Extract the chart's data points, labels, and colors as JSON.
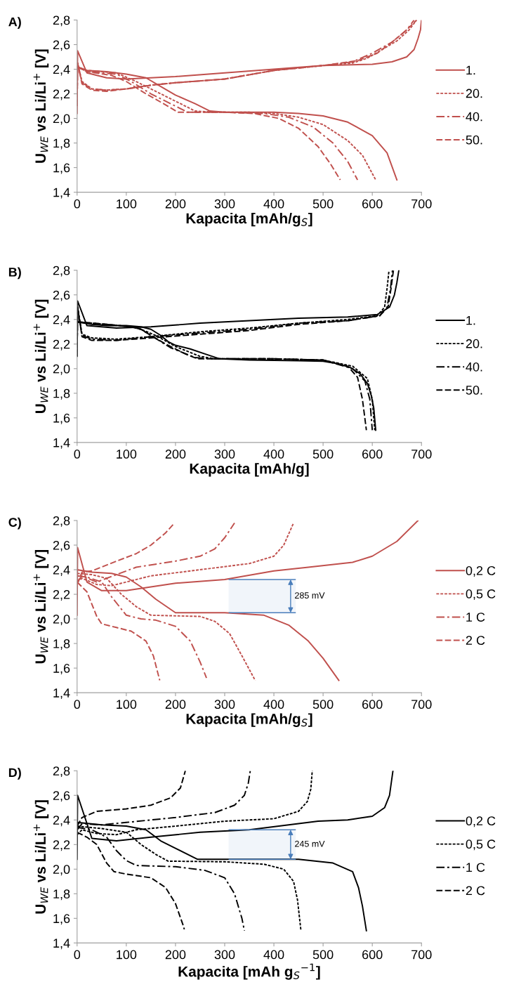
{
  "chart_data": [
    {
      "type": "line",
      "title": "A)",
      "xlabel": "Kapacita [mAh/g$_{S}$]",
      "ylabel": "U$_{WE}$ vs Li/Li$^{+}$ [V]",
      "xlim": [
        0,
        700
      ],
      "xticks": [
        0,
        100,
        200,
        300,
        400,
        500,
        600,
        700
      ],
      "ylim": [
        1.4,
        2.8
      ],
      "yticks": [
        {
          "value": 1.4,
          "label": "1,4"
        },
        {
          "value": 1.6,
          "label": "1,6"
        },
        {
          "value": 1.8,
          "label": "1,8"
        },
        {
          "value": 2.0,
          "label": "2,0"
        },
        {
          "value": 2.2,
          "label": "2,2"
        },
        {
          "value": 2.4,
          "label": "2,4"
        },
        {
          "value": 2.6,
          "label": "2,6"
        },
        {
          "value": 2.8,
          "label": "2,8"
        }
      ],
      "legend": "right",
      "grid": false,
      "marker": "none",
      "series": [
        {
          "name": "1.",
          "color": "#c0504d",
          "line_style": "solid",
          "x": [
            0,
            20,
            60,
            100,
            140,
            170,
            200,
            240,
            270,
            300,
            400,
            450,
            500,
            550,
            600,
            630,
            650
          ],
          "values": [
            2.42,
            2.39,
            2.38,
            2.36,
            2.33,
            2.26,
            2.19,
            2.12,
            2.06,
            2.05,
            2.05,
            2.04,
            2.02,
            1.97,
            1.86,
            1.72,
            1.5
          ]
        },
        {
          "color": "#c0504d",
          "line_style": "solid",
          "x": [
            0,
            1,
            20,
            60,
            100,
            150,
            200,
            300,
            400,
            500,
            600,
            640,
            670,
            685,
            693,
            698,
            700
          ],
          "values": [
            2.04,
            2.55,
            2.37,
            2.33,
            2.32,
            2.33,
            2.34,
            2.37,
            2.4,
            2.43,
            2.44,
            2.46,
            2.5,
            2.56,
            2.65,
            2.72,
            2.8
          ]
        },
        {
          "name": "20.",
          "color": "#c0504d",
          "line_style": "dashed",
          "x": [
            0,
            20,
            80,
            120,
            160,
            200,
            240,
            280,
            350,
            400,
            450,
            500,
            550,
            580,
            607
          ],
          "values": [
            2.42,
            2.39,
            2.37,
            2.3,
            2.22,
            2.14,
            2.06,
            2.05,
            2.05,
            2.04,
            2.01,
            1.95,
            1.82,
            1.7,
            1.5
          ]
        },
        {
          "color": "#c0504d",
          "line_style": "dashed",
          "x": [
            0,
            1,
            10,
            30,
            60,
            100,
            150,
            200,
            300,
            400,
            500,
            560,
            590,
            620,
            650,
            675,
            690
          ],
          "values": [
            2.1,
            2.45,
            2.3,
            2.24,
            2.23,
            2.24,
            2.27,
            2.29,
            2.32,
            2.39,
            2.43,
            2.45,
            2.49,
            2.56,
            2.63,
            2.72,
            2.8
          ]
        },
        {
          "name": "40.",
          "color": "#c0504d",
          "line_style": "dashdot",
          "x": [
            0,
            20,
            80,
            110,
            150,
            190,
            225,
            300,
            380,
            430,
            480,
            520,
            550,
            570
          ],
          "values": [
            2.42,
            2.38,
            2.36,
            2.3,
            2.2,
            2.12,
            2.05,
            2.05,
            2.04,
            2.01,
            1.93,
            1.8,
            1.65,
            1.5
          ]
        },
        {
          "color": "#c0504d",
          "line_style": "dashdot",
          "x": [
            0,
            1,
            10,
            30,
            60,
            100,
            150,
            200,
            300,
            400,
            500,
            560,
            600,
            640,
            670,
            685
          ],
          "values": [
            2.1,
            2.45,
            2.29,
            2.24,
            2.23,
            2.24,
            2.27,
            2.29,
            2.32,
            2.39,
            2.43,
            2.46,
            2.53,
            2.62,
            2.72,
            2.8
          ]
        },
        {
          "name": "50.",
          "color": "#c0504d",
          "line_style": "longdash",
          "x": [
            0,
            20,
            70,
            100,
            140,
            180,
            205,
            300,
            360,
            410,
            450,
            490,
            515,
            535
          ],
          "values": [
            2.42,
            2.38,
            2.35,
            2.3,
            2.2,
            2.11,
            2.05,
            2.05,
            2.04,
            2.0,
            1.92,
            1.77,
            1.63,
            1.5
          ]
        },
        {
          "color": "#c0504d",
          "line_style": "longdash",
          "x": [
            0,
            1,
            10,
            30,
            60,
            100,
            150,
            200,
            300,
            400,
            500,
            570,
            610,
            640,
            670,
            690
          ],
          "values": [
            2.1,
            2.45,
            2.28,
            2.23,
            2.22,
            2.24,
            2.27,
            2.29,
            2.32,
            2.39,
            2.43,
            2.47,
            2.53,
            2.62,
            2.72,
            2.8
          ]
        }
      ]
    },
    {
      "type": "line",
      "title": "B)",
      "xlabel": "Kapacita [mAh/g]",
      "ylabel": "U$_{WE}$ vs Li/Li$^{+}$ [V]",
      "xlim": [
        0,
        700
      ],
      "xticks": [
        0,
        100,
        200,
        300,
        400,
        500,
        600,
        700
      ],
      "ylim": [
        1.4,
        2.8
      ],
      "yticks": [
        {
          "value": 1.4,
          "label": "1,4"
        },
        {
          "value": 1.6,
          "label": "1,6"
        },
        {
          "value": 1.8,
          "label": "1,8"
        },
        {
          "value": 2.0,
          "label": "2,0"
        },
        {
          "value": 2.2,
          "label": "2,2"
        },
        {
          "value": 2.4,
          "label": "2,4"
        },
        {
          "value": 2.6,
          "label": "2,6"
        },
        {
          "value": 2.8,
          "label": "2,8"
        }
      ],
      "legend": "right",
      "grid": false,
      "marker": "none",
      "series": [
        {
          "name": "1.",
          "color": "#000000",
          "line_style": "solid",
          "x": [
            0,
            30,
            60,
            100,
            130,
            150,
            170,
            185,
            200,
            230,
            260,
            290,
            350,
            450,
            500,
            530,
            555,
            575,
            590,
            598,
            603,
            607
          ],
          "values": [
            2.38,
            2.36,
            2.35,
            2.35,
            2.34,
            2.32,
            2.27,
            2.22,
            2.19,
            2.16,
            2.12,
            2.08,
            2.07,
            2.065,
            2.06,
            2.04,
            2.01,
            1.96,
            1.88,
            1.78,
            1.68,
            1.5
          ]
        },
        {
          "color": "#000000",
          "line_style": "solid",
          "x": [
            0,
            1,
            20,
            50,
            80,
            150,
            250,
            350,
            450,
            550,
            610,
            635,
            645,
            650,
            654
          ],
          "values": [
            2.1,
            2.55,
            2.35,
            2.34,
            2.33,
            2.34,
            2.37,
            2.39,
            2.41,
            2.42,
            2.44,
            2.5,
            2.6,
            2.7,
            2.8
          ]
        },
        {
          "name": "20.",
          "color": "#000000",
          "line_style": "dashed",
          "x": [
            0,
            60,
            110,
            130,
            160,
            200,
            250,
            280,
            400,
            500,
            560,
            590,
            600,
            605
          ],
          "values": [
            2.38,
            2.36,
            2.34,
            2.32,
            2.27,
            2.18,
            2.1,
            2.08,
            2.08,
            2.07,
            2.02,
            1.92,
            1.75,
            1.5
          ]
        },
        {
          "color": "#000000",
          "line_style": "dashed",
          "x": [
            0,
            1,
            10,
            30,
            80,
            150,
            250,
            350,
            450,
            550,
            610,
            625,
            630,
            634
          ],
          "values": [
            2.1,
            2.5,
            2.28,
            2.25,
            2.24,
            2.26,
            2.3,
            2.33,
            2.37,
            2.4,
            2.43,
            2.5,
            2.65,
            2.8
          ]
        },
        {
          "name": "40.",
          "color": "#000000",
          "line_style": "dashdot",
          "x": [
            0,
            60,
            110,
            130,
            150,
            190,
            240,
            270,
            400,
            500,
            560,
            585,
            595,
            600
          ],
          "values": [
            2.38,
            2.36,
            2.34,
            2.32,
            2.27,
            2.17,
            2.09,
            2.08,
            2.08,
            2.07,
            2.0,
            1.9,
            1.75,
            1.5
          ]
        },
        {
          "color": "#000000",
          "line_style": "dashdot",
          "x": [
            0,
            1,
            10,
            30,
            80,
            150,
            250,
            350,
            450,
            550,
            615,
            630,
            637,
            641
          ],
          "values": [
            2.1,
            2.5,
            2.27,
            2.24,
            2.23,
            2.26,
            2.29,
            2.32,
            2.37,
            2.39,
            2.43,
            2.5,
            2.65,
            2.8
          ]
        },
        {
          "name": "50.",
          "color": "#000000",
          "line_style": "longdash",
          "x": [
            0,
            60,
            110,
            130,
            150,
            180,
            220,
            245,
            400,
            500,
            550,
            570,
            580,
            588
          ],
          "values": [
            2.38,
            2.36,
            2.34,
            2.32,
            2.27,
            2.2,
            2.12,
            2.08,
            2.08,
            2.07,
            2.02,
            1.93,
            1.75,
            1.5
          ]
        },
        {
          "color": "#000000",
          "line_style": "longdash",
          "x": [
            0,
            1,
            10,
            30,
            80,
            150,
            250,
            350,
            450,
            550,
            615,
            632,
            638,
            643
          ],
          "values": [
            2.1,
            2.5,
            2.26,
            2.23,
            2.23,
            2.25,
            2.28,
            2.31,
            2.36,
            2.39,
            2.43,
            2.5,
            2.65,
            2.8
          ]
        }
      ]
    },
    {
      "type": "line",
      "title": "C)",
      "xlabel": "Kapacita [mAh/g$_{S}$]",
      "ylabel": "U$_{WE}$ vs Li/Li$^{+}$ [V]",
      "xlim": [
        0,
        700
      ],
      "xticks": [
        0,
        100,
        200,
        300,
        400,
        500,
        600,
        700
      ],
      "ylim": [
        1.4,
        2.8
      ],
      "yticks": [
        {
          "value": 1.4,
          "label": "1,4"
        },
        {
          "value": 1.6,
          "label": "1,6"
        },
        {
          "value": 1.8,
          "label": "1,8"
        },
        {
          "value": 2.0,
          "label": "2,0"
        },
        {
          "value": 2.2,
          "label": "2,2"
        },
        {
          "value": 2.4,
          "label": "2,4"
        },
        {
          "value": 2.6,
          "label": "2,6"
        },
        {
          "value": 2.8,
          "label": "2,8"
        }
      ],
      "legend": "right",
      "grid": false,
      "marker": "none",
      "bands": [
        {
          "axis": "y",
          "from": 2.05,
          "to": 2.32,
          "label": "285 mV",
          "color": "#4a7ebb"
        }
      ],
      "series": [
        {
          "name": "0,2 C",
          "color": "#c0504d",
          "line_style": "solid",
          "x": [
            0,
            30,
            70,
            100,
            130,
            160,
            200,
            250,
            300,
            380,
            430,
            470,
            500,
            532
          ],
          "values": [
            2.4,
            2.38,
            2.37,
            2.34,
            2.26,
            2.16,
            2.05,
            2.05,
            2.05,
            2.03,
            1.95,
            1.82,
            1.68,
            1.5
          ]
        },
        {
          "color": "#c0504d",
          "line_style": "solid",
          "x": [
            0,
            1,
            20,
            50,
            100,
            200,
            300,
            400,
            470,
            560,
            600,
            650,
            693
          ],
          "values": [
            2.03,
            2.58,
            2.3,
            2.23,
            2.23,
            2.29,
            2.32,
            2.39,
            2.42,
            2.46,
            2.51,
            2.63,
            2.8
          ]
        },
        {
          "name": "0,5 C",
          "color": "#c0504d",
          "line_style": "dashed",
          "x": [
            0,
            30,
            60,
            90,
            120,
            150,
            250,
            280,
            310,
            335,
            362
          ],
          "values": [
            2.37,
            2.36,
            2.33,
            2.2,
            2.1,
            2.03,
            2.02,
            1.98,
            1.88,
            1.7,
            1.5
          ]
        },
        {
          "color": "#c0504d",
          "line_style": "dashed",
          "x": [
            0,
            10,
            40,
            70,
            100,
            150,
            250,
            350,
            400,
            420,
            440
          ],
          "values": [
            2.3,
            2.33,
            2.28,
            2.27,
            2.3,
            2.35,
            2.4,
            2.45,
            2.51,
            2.6,
            2.78
          ]
        },
        {
          "name": "1 C",
          "color": "#c0504d",
          "line_style": "dashdot",
          "x": [
            0,
            20,
            50,
            70,
            100,
            130,
            160,
            200,
            230,
            250,
            263
          ],
          "values": [
            2.35,
            2.34,
            2.3,
            2.18,
            2.03,
            2.0,
            1.99,
            1.94,
            1.82,
            1.65,
            1.52
          ]
        },
        {
          "color": "#c0504d",
          "line_style": "dashdot",
          "x": [
            0,
            10,
            40,
            80,
            120,
            200,
            250,
            280,
            300,
            320
          ],
          "values": [
            2.3,
            2.35,
            2.3,
            2.36,
            2.42,
            2.47,
            2.51,
            2.57,
            2.66,
            2.78
          ]
        },
        {
          "name": "2 C",
          "color": "#c0504d",
          "line_style": "longdash",
          "x": [
            0,
            20,
            40,
            50,
            80,
            110,
            140,
            155,
            168
          ],
          "values": [
            2.3,
            2.22,
            2.02,
            1.96,
            1.93,
            1.9,
            1.82,
            1.7,
            1.5
          ]
        },
        {
          "color": "#c0504d",
          "line_style": "longdash",
          "x": [
            0,
            10,
            30,
            80,
            120,
            150,
            180,
            198
          ],
          "values": [
            2.28,
            2.38,
            2.39,
            2.47,
            2.53,
            2.6,
            2.7,
            2.78
          ]
        }
      ]
    },
    {
      "type": "line",
      "title": "D)",
      "xlabel": "Kapacita [mAh g$_{S}$$^{−1}$]",
      "ylabel": "U$_{WE}$ vs Li/Li$^{+}$ [V]",
      "xlim": [
        0,
        700
      ],
      "xticks": [
        0,
        100,
        200,
        300,
        400,
        500,
        600,
        700
      ],
      "ylim": [
        1.4,
        2.8
      ],
      "yticks": [
        {
          "value": 1.4,
          "label": "1,4"
        },
        {
          "value": 1.6,
          "label": "1,6"
        },
        {
          "value": 1.8,
          "label": "1,8"
        },
        {
          "value": 2.0,
          "label": "2,0"
        },
        {
          "value": 2.2,
          "label": "2,2"
        },
        {
          "value": 2.4,
          "label": "2,4"
        },
        {
          "value": 2.6,
          "label": "2,6"
        },
        {
          "value": 2.8,
          "label": "2,8"
        }
      ],
      "legend": "right",
      "grid": false,
      "marker": "none",
      "bands": [
        {
          "axis": "y",
          "from": 2.08,
          "to": 2.32,
          "label": "245 mV",
          "color": "#4a7ebb"
        }
      ],
      "series": [
        {
          "name": "0,2 C",
          "color": "#000000",
          "line_style": "solid",
          "x": [
            0,
            50,
            100,
            140,
            170,
            200,
            245,
            300,
            450,
            520,
            560,
            572,
            580,
            588
          ],
          "values": [
            2.38,
            2.36,
            2.35,
            2.32,
            2.23,
            2.17,
            2.08,
            2.08,
            2.08,
            2.05,
            1.98,
            1.85,
            1.7,
            1.5
          ]
        },
        {
          "color": "#000000",
          "line_style": "solid",
          "x": [
            0,
            1,
            30,
            80,
            150,
            250,
            350,
            450,
            490,
            550,
            600,
            625,
            635,
            642
          ],
          "values": [
            2.08,
            2.6,
            2.25,
            2.23,
            2.26,
            2.3,
            2.32,
            2.37,
            2.39,
            2.4,
            2.43,
            2.5,
            2.6,
            2.8
          ]
        },
        {
          "name": "0,5 C",
          "color": "#000000",
          "line_style": "dashed",
          "x": [
            0,
            50,
            100,
            130,
            160,
            185,
            300,
            380,
            420,
            440,
            448,
            455
          ],
          "values": [
            2.35,
            2.33,
            2.3,
            2.2,
            2.12,
            2.065,
            2.06,
            2.04,
            2.0,
            1.9,
            1.75,
            1.5
          ]
        },
        {
          "color": "#000000",
          "line_style": "dashed",
          "x": [
            0,
            10,
            40,
            80,
            120,
            200,
            300,
            400,
            450,
            468,
            475,
            478
          ],
          "values": [
            2.28,
            2.32,
            2.29,
            2.28,
            2.32,
            2.35,
            2.39,
            2.41,
            2.47,
            2.55,
            2.65,
            2.8
          ]
        },
        {
          "name": "1 C",
          "color": "#000000",
          "line_style": "dashdot",
          "x": [
            0,
            30,
            60,
            80,
            100,
            120,
            200,
            260,
            300,
            320,
            335,
            340
          ],
          "values": [
            2.34,
            2.32,
            2.26,
            2.15,
            2.07,
            2.03,
            2.02,
            1.99,
            1.93,
            1.8,
            1.6,
            1.5
          ]
        },
        {
          "color": "#000000",
          "line_style": "dashdot",
          "x": [
            0,
            10,
            50,
            100,
            200,
            280,
            320,
            340,
            348,
            352
          ],
          "values": [
            2.32,
            2.37,
            2.36,
            2.38,
            2.42,
            2.46,
            2.52,
            2.6,
            2.7,
            2.8
          ]
        },
        {
          "name": "2 C",
          "color": "#000000",
          "line_style": "longdash",
          "x": [
            0,
            20,
            40,
            60,
            75,
            100,
            150,
            180,
            200,
            215,
            218
          ],
          "values": [
            2.3,
            2.26,
            2.2,
            2.05,
            1.98,
            1.96,
            1.93,
            1.85,
            1.72,
            1.55,
            1.51
          ]
        },
        {
          "color": "#000000",
          "line_style": "longdash",
          "x": [
            0,
            10,
            40,
            100,
            150,
            190,
            210,
            220
          ],
          "values": [
            2.35,
            2.42,
            2.47,
            2.49,
            2.52,
            2.58,
            2.66,
            2.8
          ]
        }
      ]
    }
  ]
}
